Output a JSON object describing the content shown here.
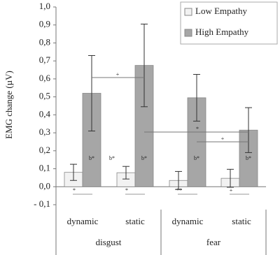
{
  "chart_data": {
    "type": "bar",
    "y_label": "EMG change (µV)",
    "categories": [
      "dynamic",
      "static",
      "dynamic",
      "static"
    ],
    "groups": [
      "disgust",
      "fear"
    ],
    "series": [
      {
        "name": "Low Empathy",
        "color": "#f2f2f2",
        "values": [
          0.08,
          0.078,
          0.035,
          0.047
        ],
        "errors": [
          0.045,
          0.035,
          0.05,
          0.05
        ],
        "bar_labels": [
          null,
          "b*",
          null,
          null
        ]
      },
      {
        "name": "High Empathy",
        "color": "#a6a6a6",
        "values": [
          0.52,
          0.675,
          0.495,
          0.315
        ],
        "errors": [
          0.21,
          0.23,
          0.13,
          0.125
        ],
        "bar_labels": [
          "b*",
          "b*",
          "b*",
          "b*"
        ]
      }
    ],
    "significance": [
      "*",
      "*",
      "**",
      "+"
    ],
    "comparisons": [
      "+",
      "*",
      "+"
    ],
    "ylim": [
      -0.1,
      1.0
    ],
    "yticks": [
      {
        "value": -0.1,
        "label": "- 0,1"
      },
      {
        "value": 0,
        "label": "0,0"
      },
      {
        "value": 0.1,
        "label": "0,1"
      },
      {
        "value": 0.2,
        "label": "0,2"
      },
      {
        "value": 0.3,
        "label": "0,3"
      },
      {
        "value": 0.4,
        "label": "0,4"
      },
      {
        "value": 0.5,
        "label": "0,5"
      },
      {
        "value": 0.6,
        "label": "0,6"
      },
      {
        "value": 0.7,
        "label": "0,7"
      },
      {
        "value": 0.8,
        "label": "0,8"
      },
      {
        "value": 0.9,
        "label": "0,9"
      },
      {
        "value": 1.0,
        "label": "1,0"
      }
    ],
    "legend": "top-right"
  }
}
